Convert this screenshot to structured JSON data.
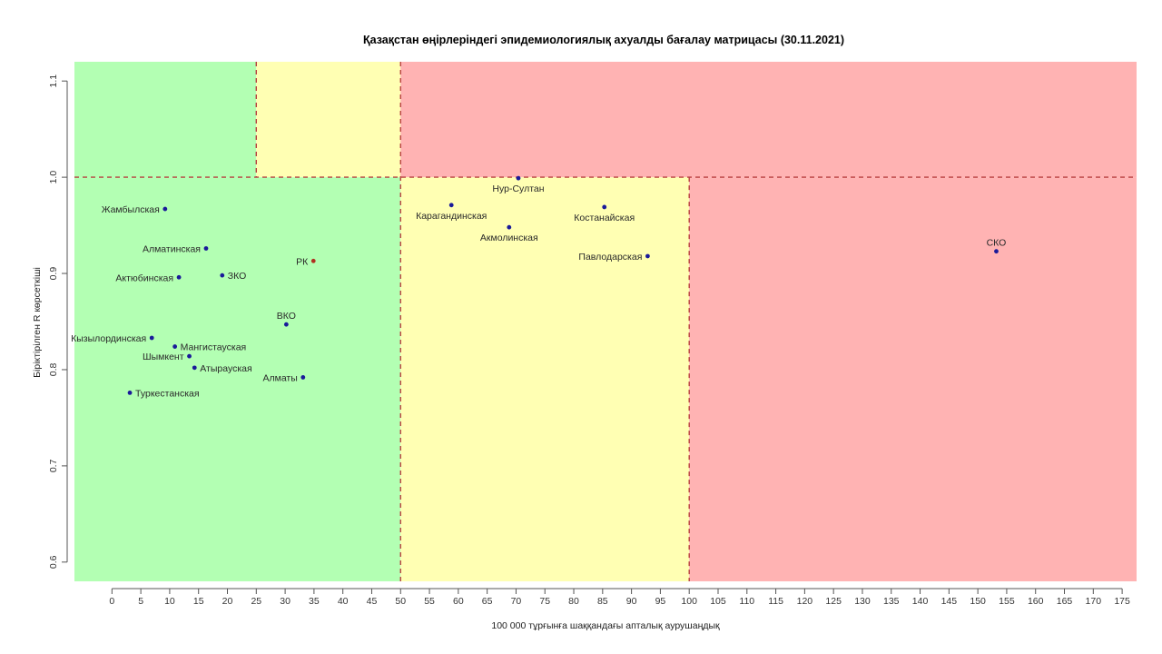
{
  "chart_data": {
    "type": "scatter",
    "title": "Қазақстан өңірлеріндегі эпидемиологиялық ахуалды бағалау матрицасы  (30.11.2021)",
    "xlabel": "100 000 тұрғынға шаққандағы апталық аурушаңдық",
    "ylabel": "Біріктірілген R көрсеткіші",
    "xlim": [
      -6.5,
      177.5
    ],
    "ylim": [
      0.58,
      1.12
    ],
    "xticks": [
      0,
      5,
      10,
      15,
      20,
      25,
      30,
      35,
      40,
      45,
      50,
      55,
      60,
      65,
      70,
      75,
      80,
      85,
      90,
      95,
      100,
      105,
      110,
      115,
      120,
      125,
      130,
      135,
      140,
      145,
      150,
      155,
      160,
      165,
      170,
      175
    ],
    "yticks": [
      0.6,
      0.7,
      0.8,
      0.9,
      1.0,
      1.1
    ],
    "ytick_labels": [
      "0.6",
      "0.7",
      "0.8",
      "0.9",
      "1.0",
      "1.1"
    ],
    "grid": false,
    "zones": [
      {
        "name": "green",
        "x": [
          -6.5,
          50
        ],
        "y": [
          0.58,
          1.0
        ],
        "color": "#b3ffb3"
      },
      {
        "name": "green",
        "x": [
          -6.5,
          25
        ],
        "y": [
          1.0,
          1.12
        ],
        "color": "#b3ffb3"
      },
      {
        "name": "yellow",
        "x": [
          25,
          50
        ],
        "y": [
          1.0,
          1.12
        ],
        "color": "#ffffb3"
      },
      {
        "name": "yellow",
        "x": [
          50,
          100
        ],
        "y": [
          0.58,
          1.0
        ],
        "color": "#ffffb3"
      },
      {
        "name": "red",
        "x": [
          50,
          177.5
        ],
        "y": [
          1.0,
          1.12
        ],
        "color": "#ffb3b3"
      },
      {
        "name": "red",
        "x": [
          100,
          177.5
        ],
        "y": [
          0.58,
          1.0
        ],
        "color": "#ffb3b3"
      }
    ],
    "threshold_lines": [
      {
        "axis": "x",
        "value": 25,
        "from": 1.0,
        "to": 1.12
      },
      {
        "axis": "x",
        "value": 50,
        "from": 0.58,
        "to": 1.12
      },
      {
        "axis": "x",
        "value": 100,
        "from": 0.58,
        "to": 1.0
      },
      {
        "axis": "y",
        "value": 1.0,
        "from": -6.5,
        "to": 177.5
      }
    ],
    "threshold_color": "#b84040",
    "points": [
      {
        "label": "Жамбылская",
        "x": 9.2,
        "y": 0.967,
        "pos": "left"
      },
      {
        "label": "Алматинская",
        "x": 16.3,
        "y": 0.926,
        "pos": "left"
      },
      {
        "label": "Актюбинская",
        "x": 11.6,
        "y": 0.896,
        "pos": "left"
      },
      {
        "label": "ЗКО",
        "x": 19.1,
        "y": 0.898,
        "pos": "right"
      },
      {
        "label": "РК",
        "x": 34.9,
        "y": 0.913,
        "pos": "left",
        "highlight": true
      },
      {
        "label": "ВКО",
        "x": 30.2,
        "y": 0.847,
        "pos": "top"
      },
      {
        "label": "Кызылординская",
        "x": 6.9,
        "y": 0.833,
        "pos": "left"
      },
      {
        "label": "Мангистауская",
        "x": 10.9,
        "y": 0.824,
        "pos": "right"
      },
      {
        "label": "Шымкент",
        "x": 13.4,
        "y": 0.814,
        "pos": "left"
      },
      {
        "label": "Атырауская",
        "x": 14.3,
        "y": 0.802,
        "pos": "right"
      },
      {
        "label": "Алматы",
        "x": 33.1,
        "y": 0.792,
        "pos": "left"
      },
      {
        "label": "Туркестанская",
        "x": 3.1,
        "y": 0.776,
        "pos": "right"
      },
      {
        "label": "Нур-Султан",
        "x": 70.4,
        "y": 0.999,
        "pos": "bottom"
      },
      {
        "label": "Карагандинская",
        "x": 58.8,
        "y": 0.971,
        "pos": "bottom"
      },
      {
        "label": "Костанайская",
        "x": 85.3,
        "y": 0.969,
        "pos": "bottom"
      },
      {
        "label": "Акмолинская",
        "x": 68.8,
        "y": 0.948,
        "pos": "bottom"
      },
      {
        "label": "Павлодарская",
        "x": 92.8,
        "y": 0.918,
        "pos": "left"
      },
      {
        "label": "СКО",
        "x": 153.2,
        "y": 0.923,
        "pos": "top"
      }
    ],
    "point_color": "#1a1a99",
    "highlight_color": "#b03020",
    "highlight_label_color": "#b04a30"
  }
}
